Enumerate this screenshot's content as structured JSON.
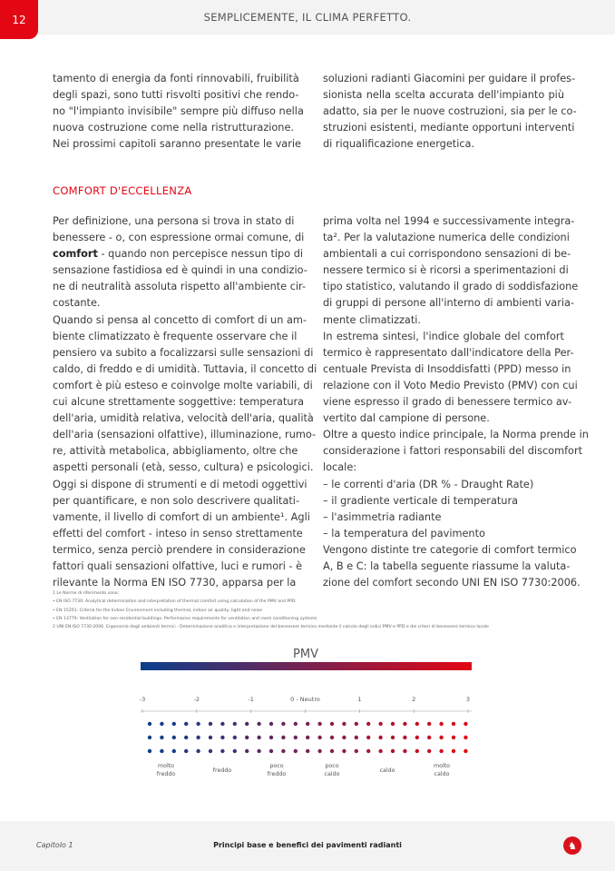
{
  "header": {
    "page_number": "12",
    "title": "SEMPLICEMENTE, IL CLIMA PERFETTO."
  },
  "intro": {
    "left": [
      {
        "lines": [
          "tamento di energia da fonti rinnovabili, fruibilità",
          "degli spazi, sono tutti risvolti positivi che rendo-",
          "no \"l'impianto invisibile\" sempre più diffuso nella",
          "nuova costruzione come nella ristrutturazione.",
          "Nei prossimi capitoli saranno presentate le varie"
        ],
        "continues": true
      }
    ],
    "right": [
      {
        "lines": [
          "soluzioni radianti Giacomini per guidare il profes-",
          "sionista nella scelta accurata dell'impianto più",
          "adatto, sia per le nuove costruzioni, sia per le co-",
          "struzioni esistenti, mediante opportuni interventi",
          "di riqualificazione energetica."
        ]
      }
    ]
  },
  "section_title": "COMFORT D'ECCELLENZA",
  "comfort": {
    "left": [
      {
        "lines": [
          "Per definizione, una persona si trova in stato di",
          "benessere - o, con espressione ormai comune, di",
          {
            "bold": "comfort",
            "text": " - quando non percepisce nessun tipo di"
          },
          "sensazione fastidiosa ed è quindi in una condizio-",
          "ne di neutralità assoluta rispetto all'ambiente cir-",
          "costante."
        ]
      },
      {
        "lines": [
          "Quando si pensa al concetto di comfort di un am-",
          "biente climatizzato è frequente osservare che il",
          "pensiero va subito a focalizzarsi sulle sensazioni di",
          "caldo, di freddo e di umidità. Tuttavia, il concetto di",
          "comfort è più esteso e coinvolge molte variabili, di",
          "cui alcune strettamente soggettive: temperatura",
          "dell'aria, umidità relativa, velocità dell'aria, qualità",
          "dell'aria (sensazioni olfattive), illuminazione, rumo-",
          "re, attività metabolica, abbigliamento, oltre che",
          "aspetti personali (età, sesso, cultura) e psicologici."
        ]
      },
      {
        "lines": [
          "Oggi si dispone di strumenti e di metodi oggettivi",
          "per quantificare, e non solo descrivere qualitati-",
          "vamente, il livello di comfort di un ambiente¹. Agli",
          "effetti del comfort - inteso in senso strettamente",
          "termico, senza perciò prendere in considerazione",
          "fattori quali sensazioni olfattive, luci e rumori - è",
          "rilevante la Norma EN ISO 7730, apparsa per la"
        ],
        "continues": true
      }
    ],
    "right": [
      {
        "lines": [
          "prima volta nel 1994 e successivamente integra-",
          "ta². Per la valutazione numerica delle condizioni",
          "ambientali a cui corrispondono sensazioni di be-",
          "nessere termico si è ricorsi a sperimentazioni di",
          "tipo statistico, valutando il grado di soddisfazione",
          "di gruppi di persone all'interno di ambienti varia-",
          "mente climatizzati."
        ]
      },
      {
        "lines": [
          "In estrema sintesi, l'indice globale del comfort",
          "termico è rappresentato dall'indicatore della Per-",
          "centuale Prevista di Insoddisfatti (PPD) messo in",
          "relazione con il Voto Medio Previsto (PMV) con cui",
          "viene espresso il grado di benessere termico av-",
          "vertito dal campione di persone."
        ]
      },
      {
        "lines": [
          "Oltre a questo indice principale, la Norma prende in",
          "considerazione i fattori responsabili del discomfort",
          "locale:"
        ]
      },
      {
        "lines": [
          "– le correnti d'aria (DR % - Draught Rate)"
        ]
      },
      {
        "lines": [
          "– il gradiente verticale di temperatura"
        ]
      },
      {
        "lines": [
          "– l'asimmetria radiante"
        ]
      },
      {
        "lines": [
          "– la temperatura del pavimento"
        ]
      },
      {
        "lines": [
          "Vengono distinte tre categorie di comfort termico",
          "A, B e C: la tabella seguente riassume la valuta-",
          "zione del comfort secondo UNI EN ISO 7730:2006."
        ]
      }
    ]
  },
  "footnotes": [
    "1 Le Norme di riferimento sono:",
    "• EN ISO 7730: Analytical determination and interpretation of thermal comfort using calculation of the PMV and PPD",
    "• EN 15251: Criteria for the Indoor Environment including thermal, indoor air quality, light and noise",
    "• EN 13779: Ventilation for non-residential buildings. Performance requirements for ventilation and room conditioning systems",
    "2 UNI EN ISO 7730:2006. Ergonomia degli ambienti termici - Determinazione analitica e interpretazione del benessere termico mediante il calcolo degli indici PMV e PPD e dei criteri di benessere termico locale"
  ],
  "pmv_scale": {
    "title": "PMV",
    "colors": {
      "cold": "#0b3f8c",
      "hot": "#e30613"
    },
    "ticks": [
      "-3",
      "-2",
      "-1",
      "0 - Neutro",
      "1",
      "2",
      "3"
    ],
    "categories": [
      [
        "molto",
        "freddo"
      ],
      [
        "freddo"
      ],
      [
        "poco",
        "freddo"
      ],
      [
        "poco",
        "caldo"
      ],
      [
        "caldo"
      ],
      [
        "molto",
        "caldo"
      ]
    ]
  },
  "footer": {
    "chapter": "Capitolo 1",
    "title": "Principi base e benefici dei pavimenti radianti",
    "logo_text": "G"
  }
}
